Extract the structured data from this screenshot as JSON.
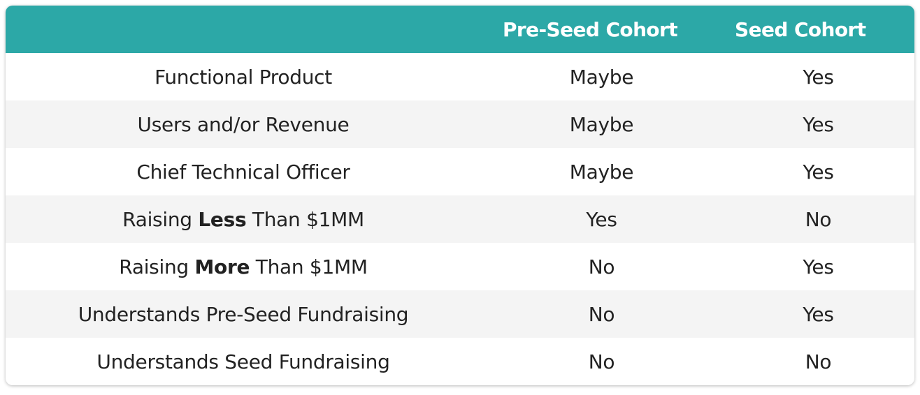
{
  "colors": {
    "header_bg": "#2ca8a7",
    "header_text": "#ffffff",
    "row_alt_bg": "#f4f4f4",
    "body_text": "#222222"
  },
  "table": {
    "headers": [
      "",
      "Pre-Seed Cohort",
      "Seed Cohort"
    ],
    "rows": [
      {
        "criterion": "Functional Product",
        "pre_seed": "Maybe",
        "seed": "Yes"
      },
      {
        "criterion": "Users and/or Revenue",
        "pre_seed": "Maybe",
        "seed": "Yes"
      },
      {
        "criterion": "Chief Technical Officer",
        "pre_seed": "Maybe",
        "seed": "Yes"
      },
      {
        "criterion_prefix": "Raising ",
        "criterion_emphasis": "Less",
        "criterion_suffix": " Than $1MM",
        "pre_seed": "Yes",
        "seed": "No"
      },
      {
        "criterion_prefix": "Raising ",
        "criterion_emphasis": "More",
        "criterion_suffix": " Than $1MM",
        "pre_seed": "No",
        "seed": "Yes"
      },
      {
        "criterion": "Understands Pre-Seed Fundraising",
        "pre_seed": "No",
        "seed": "Yes"
      },
      {
        "criterion": "Understands Seed Fundraising",
        "pre_seed": "No",
        "seed": "No"
      }
    ]
  }
}
